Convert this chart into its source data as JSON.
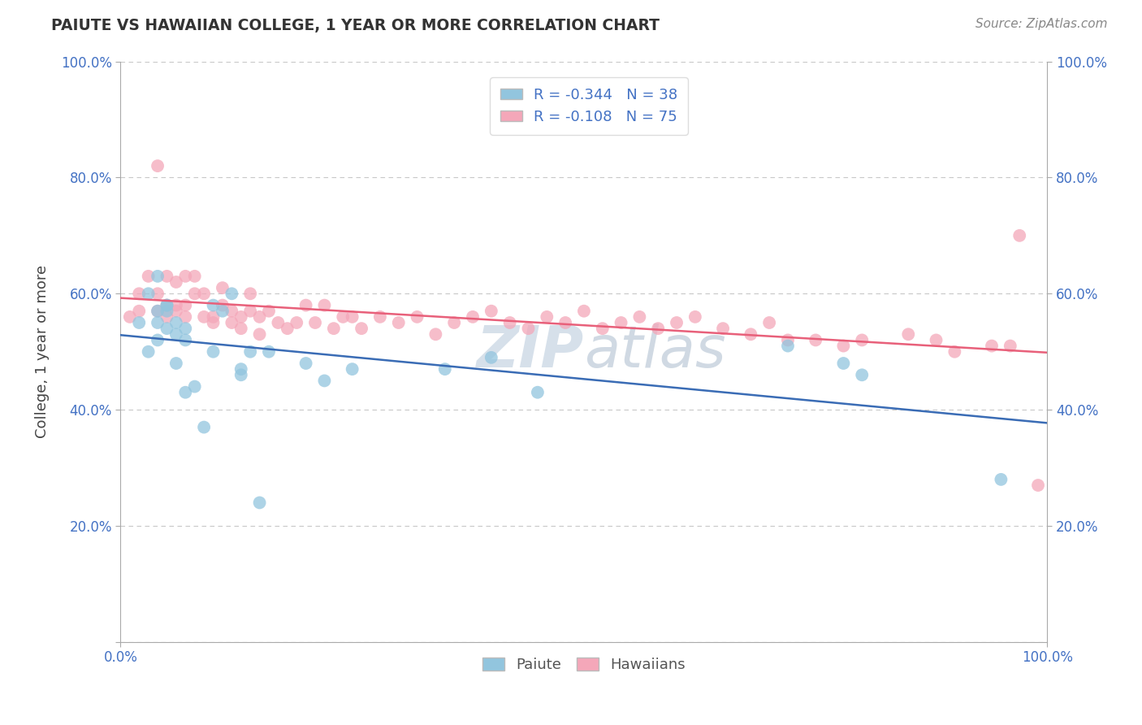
{
  "title": "PAIUTE VS HAWAIIAN COLLEGE, 1 YEAR OR MORE CORRELATION CHART",
  "source_text": "Source: ZipAtlas.com",
  "ylabel": "College, 1 year or more",
  "xlim": [
    0.0,
    100.0
  ],
  "ylim": [
    0.0,
    100.0
  ],
  "xtick_labels": [
    "0.0%",
    "100.0%"
  ],
  "ytick_labels": [
    "",
    "20.0%",
    "40.0%",
    "60.0%",
    "80.0%",
    "100.0%"
  ],
  "ytick_positions": [
    0.0,
    20.0,
    40.0,
    60.0,
    80.0,
    100.0
  ],
  "xtick_positions": [
    0.0,
    100.0
  ],
  "paiute_R": -0.344,
  "paiute_N": 38,
  "hawaiian_R": -0.108,
  "hawaiian_N": 75,
  "paiute_color": "#92C5DE",
  "hawaiian_color": "#F4A7B9",
  "paiute_line_color": "#3A6CB5",
  "hawaiian_line_color": "#E8607A",
  "background_color": "#FFFFFF",
  "grid_color": "#C8C8C8",
  "watermark_color": "#DDEEFF",
  "legend_text_color": "#4472C4",
  "tick_color": "#4472C4",
  "paiute_x": [
    2,
    3,
    3,
    4,
    4,
    4,
    4,
    5,
    5,
    5,
    5,
    6,
    6,
    6,
    7,
    7,
    7,
    8,
    9,
    10,
    10,
    11,
    12,
    13,
    13,
    14,
    15,
    16,
    20,
    22,
    25,
    35,
    40,
    45,
    72,
    78,
    80,
    95
  ],
  "paiute_y": [
    55,
    60,
    50,
    57,
    55,
    63,
    52,
    57,
    58,
    54,
    58,
    53,
    55,
    48,
    54,
    52,
    43,
    44,
    37,
    50,
    58,
    57,
    60,
    46,
    47,
    50,
    24,
    50,
    48,
    45,
    47,
    47,
    49,
    43,
    51,
    48,
    46,
    28
  ],
  "hawaiian_x": [
    1,
    2,
    2,
    3,
    4,
    4,
    4,
    5,
    5,
    5,
    6,
    6,
    6,
    7,
    7,
    7,
    8,
    8,
    9,
    9,
    10,
    10,
    11,
    11,
    12,
    12,
    13,
    13,
    14,
    14,
    15,
    15,
    16,
    17,
    18,
    19,
    20,
    21,
    22,
    23,
    24,
    25,
    26,
    28,
    30,
    32,
    34,
    36,
    38,
    40,
    42,
    44,
    46,
    48,
    50,
    52,
    54,
    56,
    58,
    60,
    62,
    65,
    68,
    70,
    72,
    75,
    78,
    80,
    85,
    88,
    90,
    94,
    96,
    97,
    99
  ],
  "hawaiian_y": [
    56,
    60,
    57,
    63,
    60,
    57,
    82,
    63,
    58,
    56,
    58,
    62,
    57,
    63,
    58,
    56,
    60,
    63,
    60,
    56,
    55,
    56,
    58,
    61,
    55,
    57,
    56,
    54,
    57,
    60,
    56,
    53,
    57,
    55,
    54,
    55,
    58,
    55,
    58,
    54,
    56,
    56,
    54,
    56,
    55,
    56,
    53,
    55,
    56,
    57,
    55,
    54,
    56,
    55,
    57,
    54,
    55,
    56,
    54,
    55,
    56,
    54,
    53,
    55,
    52,
    52,
    51,
    52,
    53,
    52,
    50,
    51,
    51,
    70,
    27
  ]
}
